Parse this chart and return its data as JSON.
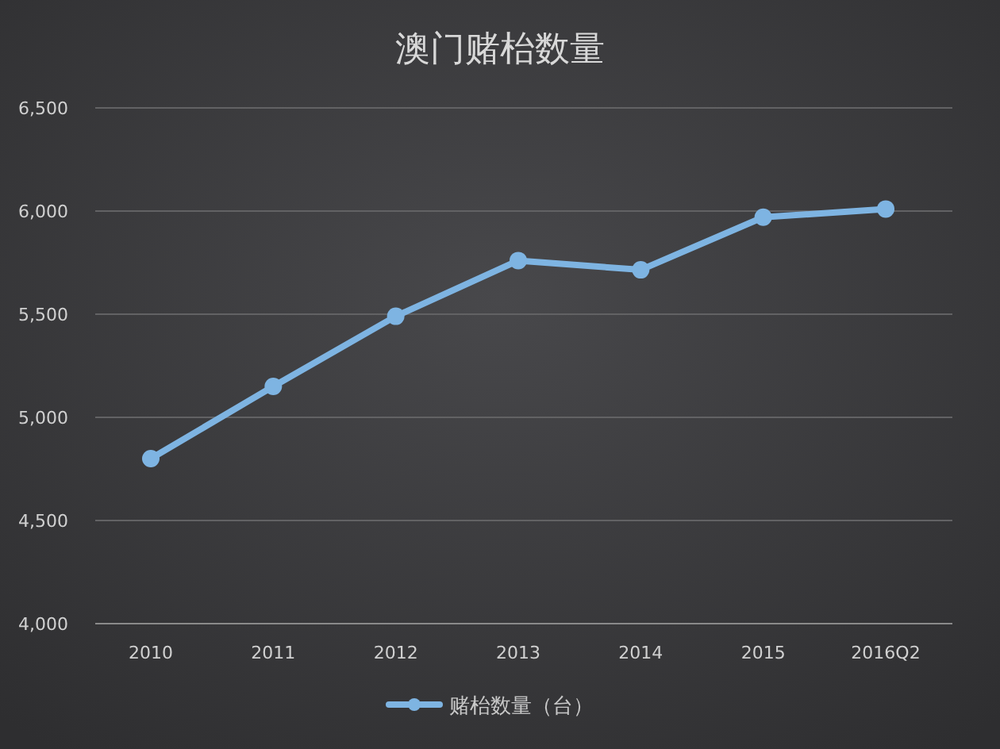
{
  "chart_data": {
    "type": "line",
    "title": "澳门赌枱数量",
    "categories": [
      "2010",
      "2011",
      "2012",
      "2013",
      "2014",
      "2015",
      "2016Q2"
    ],
    "series": [
      {
        "name": "赌枱数量（台）",
        "color": "#7eb4e2",
        "values": [
          4800,
          5150,
          5490,
          5760,
          5715,
          5970,
          6010
        ]
      }
    ],
    "ylim": [
      4000,
      6500
    ],
    "yticks": [
      {
        "value": 4000,
        "label": "4,000"
      },
      {
        "value": 4500,
        "label": "4,500"
      },
      {
        "value": 5000,
        "label": "5,000"
      },
      {
        "value": 5500,
        "label": "5,500"
      },
      {
        "value": 6000,
        "label": "6,000"
      },
      {
        "value": 6500,
        "label": "6,500"
      }
    ],
    "grid": "y",
    "legend": "bottom",
    "marker": "circle",
    "line_style": "solid"
  }
}
